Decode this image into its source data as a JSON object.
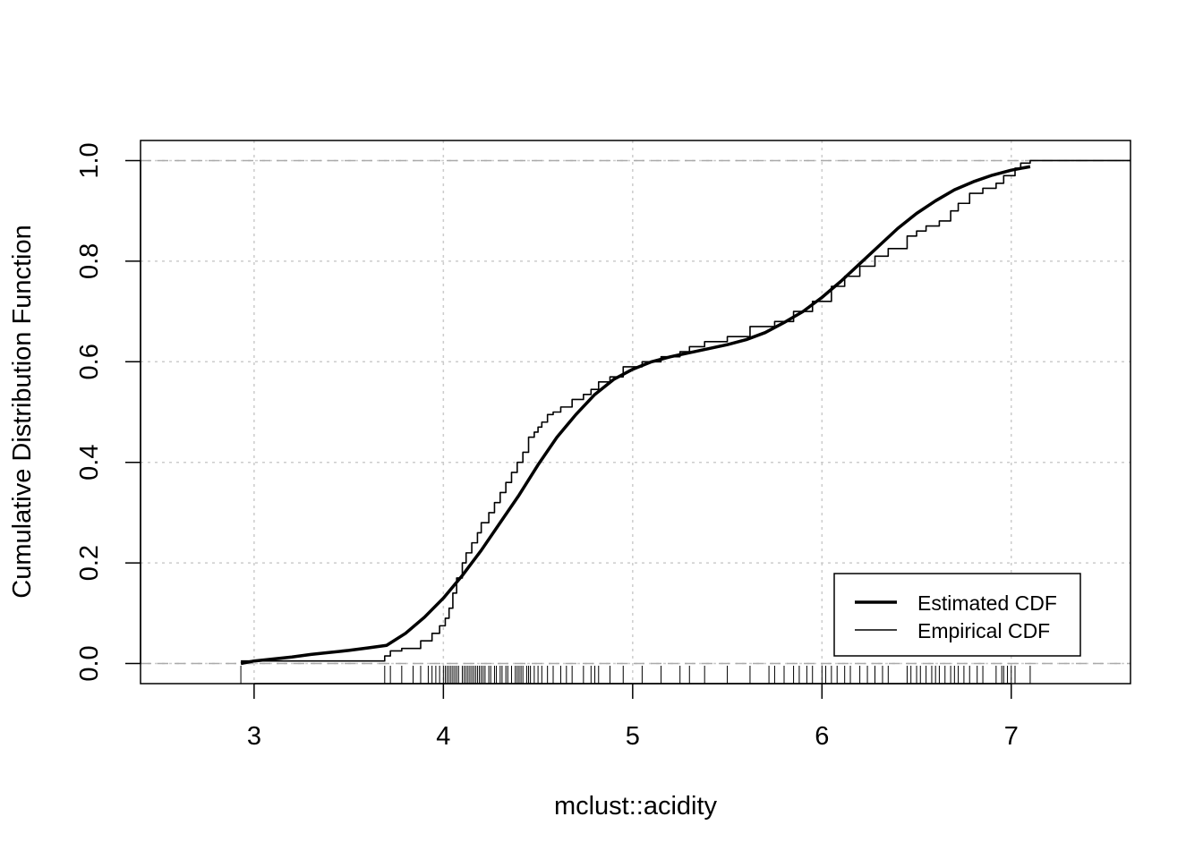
{
  "chart_data": {
    "type": "line",
    "title": "",
    "xlabel": "mclust::acidity",
    "ylabel": "Cumulative Distribution Function",
    "xlim": [
      2.4,
      7.63
    ],
    "ylim": [
      -0.04,
      1.04
    ],
    "x_ticks": [
      "3",
      "4",
      "5",
      "6",
      "7"
    ],
    "y_ticks": [
      "0.0",
      "0.2",
      "0.4",
      "0.6",
      "0.8",
      "1.0"
    ],
    "grid": true,
    "legend_position": "bottom-right",
    "legend": [
      {
        "label": "Estimated CDF",
        "style": "thick"
      },
      {
        "label": "Empirical CDF",
        "style": "thin"
      }
    ],
    "series": [
      {
        "name": "Estimated CDF",
        "x": [
          2.93,
          3.0,
          3.1,
          3.2,
          3.3,
          3.4,
          3.5,
          3.6,
          3.7,
          3.8,
          3.9,
          4.0,
          4.1,
          4.2,
          4.3,
          4.4,
          4.5,
          4.6,
          4.7,
          4.8,
          4.9,
          5.0,
          5.1,
          5.2,
          5.3,
          5.4,
          5.5,
          5.6,
          5.7,
          5.8,
          5.9,
          6.0,
          6.1,
          6.2,
          6.3,
          6.4,
          6.5,
          6.6,
          6.7,
          6.8,
          6.9,
          7.0,
          7.1
        ],
        "y": [
          0.0,
          0.005,
          0.009,
          0.013,
          0.018,
          0.022,
          0.026,
          0.031,
          0.036,
          0.06,
          0.092,
          0.13,
          0.175,
          0.225,
          0.28,
          0.335,
          0.395,
          0.45,
          0.495,
          0.535,
          0.565,
          0.585,
          0.6,
          0.61,
          0.618,
          0.626,
          0.634,
          0.644,
          0.658,
          0.678,
          0.7,
          0.728,
          0.76,
          0.795,
          0.83,
          0.865,
          0.895,
          0.92,
          0.942,
          0.958,
          0.971,
          0.981,
          0.988
        ]
      },
      {
        "name": "Empirical CDF",
        "step": true,
        "x": [
          2.93,
          3.69,
          3.72,
          3.78,
          3.88,
          3.94,
          3.98,
          4.01,
          4.03,
          4.05,
          4.07,
          4.1,
          4.12,
          4.15,
          4.18,
          4.2,
          4.24,
          4.27,
          4.3,
          4.33,
          4.36,
          4.39,
          4.42,
          4.45,
          4.48,
          4.5,
          4.52,
          4.55,
          4.58,
          4.62,
          4.68,
          4.74,
          4.78,
          4.82,
          4.88,
          4.95,
          5.05,
          5.15,
          5.25,
          5.3,
          5.38,
          5.5,
          5.62,
          5.75,
          5.85,
          5.95,
          6.05,
          6.12,
          6.2,
          6.28,
          6.35,
          6.45,
          6.5,
          6.55,
          6.62,
          6.68,
          6.72,
          6.78,
          6.85,
          6.92,
          6.96,
          7.02,
          7.05,
          7.1,
          7.63
        ],
        "y": [
          0.005,
          0.015,
          0.025,
          0.03,
          0.045,
          0.06,
          0.075,
          0.09,
          0.11,
          0.14,
          0.17,
          0.2,
          0.22,
          0.24,
          0.26,
          0.28,
          0.3,
          0.32,
          0.34,
          0.36,
          0.38,
          0.4,
          0.42,
          0.45,
          0.46,
          0.47,
          0.48,
          0.495,
          0.5,
          0.51,
          0.525,
          0.535,
          0.545,
          0.56,
          0.57,
          0.59,
          0.6,
          0.61,
          0.62,
          0.63,
          0.64,
          0.65,
          0.67,
          0.68,
          0.7,
          0.72,
          0.75,
          0.77,
          0.79,
          0.81,
          0.825,
          0.85,
          0.86,
          0.87,
          0.88,
          0.9,
          0.915,
          0.935,
          0.945,
          0.955,
          0.97,
          0.985,
          0.995,
          1.0,
          1.0
        ]
      }
    ],
    "rug": [
      2.93,
      3.69,
      3.72,
      3.78,
      3.84,
      3.88,
      3.92,
      3.94,
      3.96,
      3.98,
      4.0,
      4.01,
      4.02,
      4.03,
      4.04,
      4.05,
      4.06,
      4.07,
      4.08,
      4.1,
      4.11,
      4.12,
      4.13,
      4.14,
      4.15,
      4.16,
      4.17,
      4.18,
      4.19,
      4.2,
      4.21,
      4.22,
      4.24,
      4.25,
      4.27,
      4.28,
      4.3,
      4.31,
      4.33,
      4.34,
      4.36,
      4.38,
      4.39,
      4.4,
      4.41,
      4.42,
      4.44,
      4.45,
      4.46,
      4.48,
      4.5,
      4.52,
      4.55,
      4.58,
      4.62,
      4.65,
      4.68,
      4.74,
      4.78,
      4.8,
      4.82,
      4.88,
      4.95,
      5.05,
      5.15,
      5.25,
      5.3,
      5.38,
      5.5,
      5.62,
      5.72,
      5.75,
      5.8,
      5.85,
      5.88,
      5.92,
      5.95,
      6.0,
      6.02,
      6.05,
      6.08,
      6.12,
      6.15,
      6.2,
      6.24,
      6.28,
      6.32,
      6.35,
      6.45,
      6.47,
      6.5,
      6.52,
      6.55,
      6.58,
      6.6,
      6.62,
      6.65,
      6.68,
      6.7,
      6.72,
      6.75,
      6.78,
      6.82,
      6.85,
      6.92,
      6.95,
      6.96,
      6.98,
      7.0,
      7.02,
      7.1
    ]
  }
}
